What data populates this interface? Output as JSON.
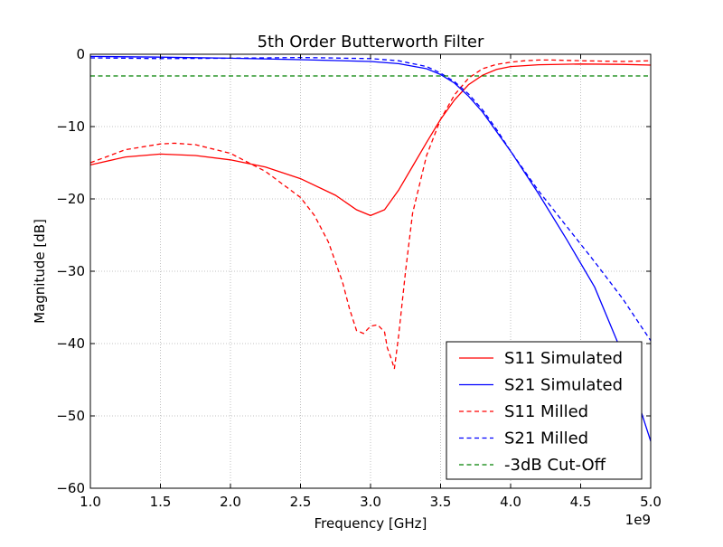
{
  "chart_data": {
    "type": "line",
    "title": "5th Order Butterworth Filter",
    "xlabel": "Frequency [GHz]",
    "ylabel": "Magnitude [dB]",
    "x_offset_label": "1e9",
    "xlim": [
      1.0,
      5.0
    ],
    "ylim": [
      -60,
      0
    ],
    "xticks": [
      1.0,
      1.5,
      2.0,
      2.5,
      3.0,
      3.5,
      4.0,
      4.5,
      5.0
    ],
    "xtick_labels": [
      "1.0",
      "1.5",
      "2.0",
      "2.5",
      "3.0",
      "3.5",
      "4.0",
      "4.5",
      "5.0"
    ],
    "yticks": [
      0,
      -10,
      -20,
      -30,
      -40,
      -50,
      -60
    ],
    "ytick_labels": [
      "0",
      "−10",
      "−20",
      "−30",
      "−40",
      "−50",
      "−60"
    ],
    "grid": true,
    "legend_position": "bottom-right",
    "series": [
      {
        "name": "S11 Simulated",
        "color": "#ff0000",
        "dash": "solid",
        "x": [
          1.0,
          1.25,
          1.5,
          1.75,
          2.0,
          2.25,
          2.5,
          2.75,
          2.9,
          3.0,
          3.1,
          3.2,
          3.3,
          3.4,
          3.5,
          3.6,
          3.7,
          3.8,
          3.9,
          4.0,
          4.2,
          4.5,
          4.8,
          5.0
        ],
        "y": [
          -15.3,
          -14.2,
          -13.8,
          -14.0,
          -14.6,
          -15.6,
          -17.2,
          -19.5,
          -21.5,
          -22.3,
          -21.5,
          -18.8,
          -15.5,
          -12.2,
          -9.0,
          -6.3,
          -4.2,
          -2.9,
          -2.1,
          -1.7,
          -1.45,
          -1.35,
          -1.4,
          -1.5
        ]
      },
      {
        "name": "S21 Simulated",
        "color": "#0000ff",
        "dash": "solid",
        "x": [
          1.0,
          1.5,
          2.0,
          2.5,
          3.0,
          3.2,
          3.4,
          3.5,
          3.6,
          3.7,
          3.8,
          3.9,
          4.0,
          4.2,
          4.4,
          4.6,
          4.8,
          5.0
        ],
        "y": [
          -0.3,
          -0.4,
          -0.55,
          -0.75,
          -1.0,
          -1.3,
          -2.0,
          -2.8,
          -4.0,
          -5.8,
          -8.0,
          -10.7,
          -13.4,
          -19.3,
          -25.6,
          -32.2,
          -41.5,
          -53.5
        ]
      },
      {
        "name": "S11 Milled",
        "color": "#ff0000",
        "dash": "dashed",
        "x": [
          1.0,
          1.25,
          1.5,
          1.6,
          1.75,
          2.0,
          2.25,
          2.5,
          2.6,
          2.7,
          2.8,
          2.85,
          2.9,
          2.95,
          3.0,
          3.05,
          3.1,
          3.12,
          3.15,
          3.17,
          3.2,
          3.25,
          3.3,
          3.4,
          3.5,
          3.6,
          3.7,
          3.8,
          3.9,
          4.0,
          4.1,
          4.2,
          4.3,
          4.5,
          4.8,
          5.0
        ],
        "y": [
          -15.0,
          -13.2,
          -12.4,
          -12.3,
          -12.5,
          -13.7,
          -16.2,
          -19.8,
          -22.3,
          -26.0,
          -31.5,
          -35.2,
          -38.2,
          -38.6,
          -37.6,
          -37.4,
          -38.4,
          -40.6,
          -42.2,
          -43.5,
          -39.0,
          -30.0,
          -22.0,
          -14.0,
          -9.0,
          -5.6,
          -3.3,
          -2.0,
          -1.4,
          -1.1,
          -0.9,
          -0.8,
          -0.8,
          -0.9,
          -1.0,
          -0.9
        ]
      },
      {
        "name": "S21 Milled",
        "color": "#0000ff",
        "dash": "dashed",
        "x": [
          1.0,
          1.5,
          2.0,
          2.5,
          3.0,
          3.2,
          3.4,
          3.5,
          3.6,
          3.7,
          3.8,
          3.9,
          4.0,
          4.2,
          4.4,
          4.6,
          4.8,
          5.0
        ],
        "y": [
          -0.5,
          -0.6,
          -0.55,
          -0.45,
          -0.6,
          -0.9,
          -1.7,
          -2.6,
          -3.8,
          -5.5,
          -7.7,
          -10.4,
          -13.4,
          -18.9,
          -23.8,
          -28.7,
          -33.8,
          -39.6
        ]
      },
      {
        "name": "-3dB Cut-Off",
        "color": "#008000",
        "dash": "dashed",
        "x": [
          1.0,
          5.0
        ],
        "y": [
          -3.0,
          -3.0
        ]
      }
    ]
  }
}
